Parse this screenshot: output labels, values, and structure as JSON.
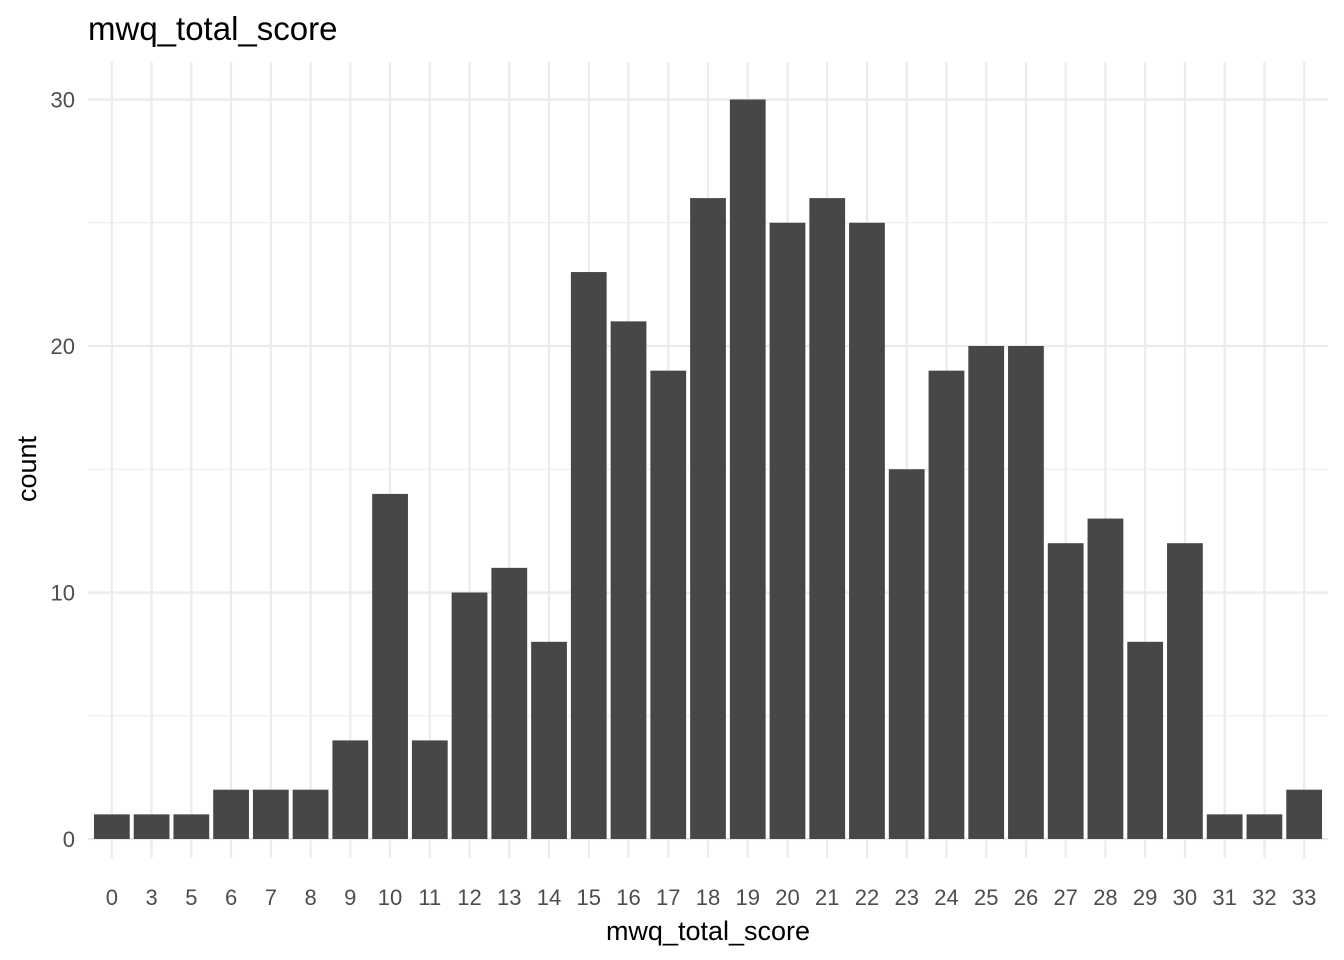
{
  "chart_data": {
    "type": "bar",
    "title": "mwq_total_score",
    "xlabel": "mwq_total_score",
    "ylabel": "count",
    "categories": [
      "0",
      "3",
      "5",
      "6",
      "7",
      "8",
      "9",
      "10",
      "11",
      "12",
      "13",
      "14",
      "15",
      "16",
      "17",
      "18",
      "19",
      "20",
      "21",
      "22",
      "23",
      "24",
      "25",
      "26",
      "27",
      "28",
      "29",
      "30",
      "31",
      "32",
      "33"
    ],
    "values": [
      1,
      1,
      1,
      2,
      2,
      2,
      4,
      14,
      4,
      10,
      11,
      8,
      23,
      21,
      19,
      26,
      30,
      25,
      26,
      25,
      15,
      19,
      20,
      20,
      12,
      13,
      8,
      12,
      1,
      1,
      2
    ],
    "ylim": [
      0,
      31.5
    ],
    "yticks": [
      0,
      10,
      20,
      30
    ],
    "grid": true,
    "bar_color": "#474747",
    "grid_color": "#ebebeb"
  }
}
